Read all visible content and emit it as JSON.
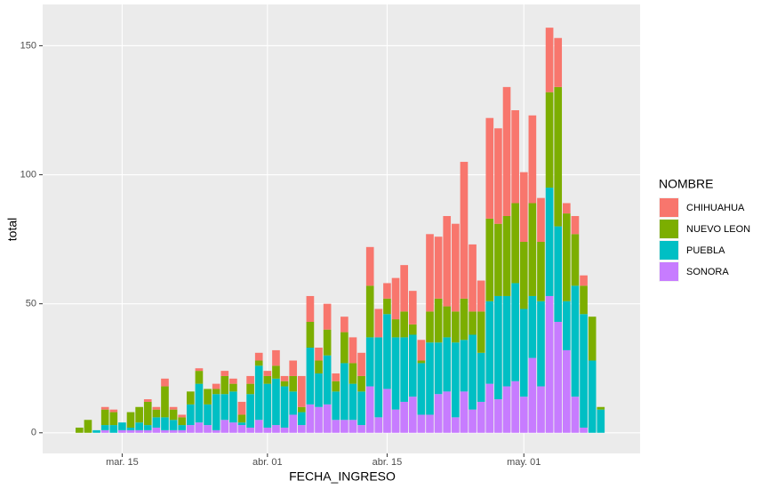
{
  "chart_data": {
    "type": "stacked-bar",
    "x_label": "FECHA_INGRESO",
    "y_label": "total",
    "legend_title": "NOMBRE",
    "categories": [
      null,
      null,
      null,
      null,
      null,
      "mar. 15",
      null,
      null,
      null,
      null,
      null,
      null,
      null,
      null,
      null,
      null,
      null,
      null,
      null,
      null,
      null,
      null,
      "abr. 01",
      null,
      null,
      null,
      null,
      null,
      null,
      null,
      null,
      null,
      null,
      null,
      null,
      null,
      "abr. 15",
      null,
      null,
      null,
      null,
      null,
      null,
      null,
      null,
      null,
      null,
      null,
      null,
      null,
      null,
      null,
      "may. 01",
      null,
      null,
      null,
      null,
      null,
      null,
      null,
      null,
      null
    ],
    "series": [
      {
        "name": "SONORA",
        "color": "#C77CFF",
        "values": [
          0,
          0,
          0,
          1,
          0,
          1,
          1,
          1,
          1,
          2,
          1,
          1,
          1,
          3,
          4,
          3,
          1,
          5,
          4,
          3,
          2,
          5,
          2,
          3,
          2,
          7,
          3,
          11,
          10,
          11,
          5,
          5,
          5,
          3,
          18,
          6,
          17,
          9,
          12,
          14,
          7,
          7,
          15,
          16,
          6,
          16,
          9,
          12,
          19,
          13,
          18,
          20,
          14,
          29,
          18,
          53,
          43,
          32,
          14,
          2,
          0,
          0
        ]
      },
      {
        "name": "PUEBLA",
        "color": "#00BFC4",
        "values": [
          0,
          0,
          1,
          2,
          3,
          3,
          1,
          3,
          2,
          4,
          5,
          4,
          2,
          8,
          15,
          8,
          14,
          10,
          12,
          1,
          13,
          21,
          17,
          18,
          16,
          9,
          5,
          22,
          13,
          19,
          11,
          22,
          14,
          13,
          19,
          31,
          29,
          28,
          25,
          24,
          20,
          28,
          20,
          21,
          29,
          20,
          29,
          19,
          32,
          40,
          35,
          38,
          34,
          24,
          33,
          42,
          37,
          19,
          43,
          44,
          28,
          9
        ]
      },
      {
        "name": "NUEVO LEON",
        "color": "#7CAE00",
        "values": [
          2,
          5,
          0,
          6,
          5,
          0,
          6,
          6,
          9,
          3,
          12,
          4,
          3,
          5,
          5,
          6,
          2,
          7,
          3,
          3,
          4,
          2,
          3,
          5,
          2,
          6,
          2,
          10,
          5,
          10,
          4,
          12,
          8,
          6,
          20,
          0,
          6,
          7,
          10,
          4,
          1,
          12,
          17,
          12,
          12,
          16,
          9,
          16,
          32,
          28,
          31,
          31,
          26,
          36,
          23,
          37,
          54,
          34,
          20,
          11,
          17,
          1
        ]
      },
      {
        "name": "CHIHUAHUA",
        "color": "#F8766D",
        "values": [
          0,
          0,
          0,
          1,
          1,
          0,
          0,
          0,
          1,
          1,
          3,
          1,
          1,
          0,
          1,
          0,
          2,
          2,
          2,
          5,
          3,
          3,
          2,
          6,
          2,
          6,
          12,
          10,
          5,
          10,
          3,
          6,
          10,
          9,
          15,
          11,
          6,
          16,
          18,
          13,
          8,
          30,
          24,
          35,
          34,
          53,
          26,
          12,
          39,
          37,
          50,
          36,
          27,
          34,
          17,
          25,
          19,
          4,
          7,
          4,
          0,
          0
        ]
      }
    ],
    "ylim": [
      -8,
      166
    ],
    "yticks": [
      0,
      50,
      100,
      150
    ],
    "grid": true,
    "legend": "right"
  }
}
